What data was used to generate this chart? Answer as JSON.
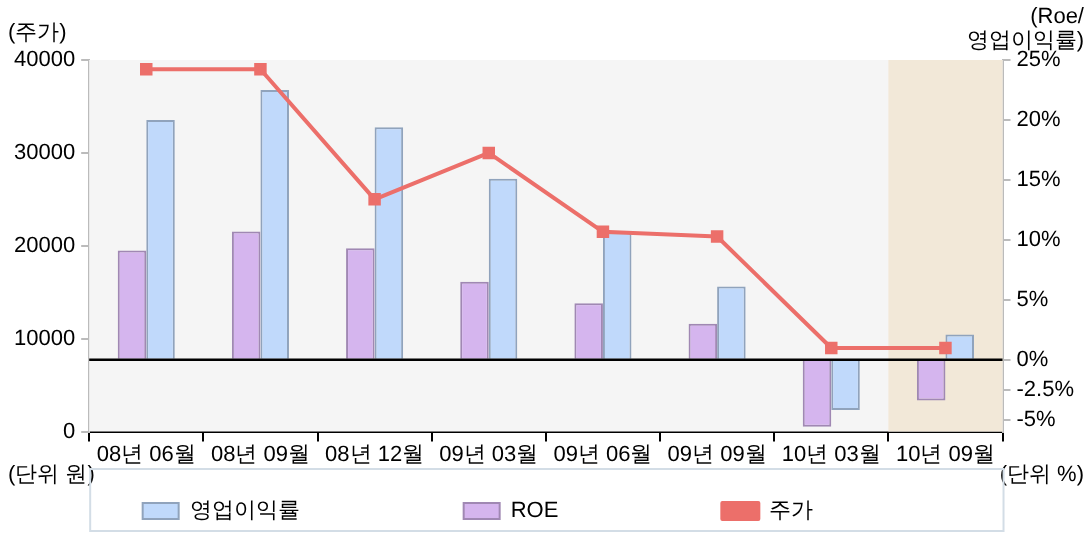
{
  "chart_data": {
    "type": "bar",
    "ylabel": "(주가)",
    "y2label": "(Roe/\n영업이익률)",
    "categories": [
      "08년 06월",
      "08년 09월",
      "08년 12월",
      "09년 03월",
      "09년 06월",
      "09년 09월",
      "10년 03월",
      "10년 09월"
    ],
    "series": [
      {
        "name": "영업이익률",
        "axis": "y2",
        "color": "#c0d9fb",
        "values": [
          20.0,
          22.5,
          19.4,
          15.1,
          10.6,
          6.1,
          -4.2,
          2.1
        ]
      },
      {
        "name": "ROE",
        "axis": "y2",
        "color": "#d5b5ee",
        "values": [
          9.1,
          10.7,
          9.3,
          6.5,
          4.7,
          3.0,
          -5.6,
          -3.4
        ]
      },
      {
        "name": "주가",
        "type": "line",
        "color": "#ec6f6a",
        "marker": "square",
        "values": [
          39000,
          39000,
          25000,
          30000,
          21500,
          21000,
          9000,
          9000
        ]
      }
    ],
    "ylim": [
      0,
      40000
    ],
    "yticks": [
      0,
      10000,
      20000,
      30000,
      40000
    ],
    "y2lim": [
      -6,
      25
    ],
    "y2ticks": [
      {
        "value": 25,
        "label": "25%"
      },
      {
        "value": 20,
        "label": "20%"
      },
      {
        "value": 15,
        "label": "15%"
      },
      {
        "value": 10,
        "label": "10%"
      },
      {
        "value": 5,
        "label": "5%"
      },
      {
        "value": 0,
        "label": "0%"
      },
      {
        "value": -2.5,
        "label": "-2.5%"
      },
      {
        "value": -5,
        "label": "-5%"
      }
    ],
    "ref_lines": [
      {
        "axis": "y2",
        "value": 0,
        "color": "#000000"
      }
    ],
    "bands": [
      {
        "axis": "x",
        "from": "10년 09월",
        "to": "10년 09월",
        "color": "#f2e8d8"
      }
    ],
    "annotations": [
      "(단위 원)",
      "(단위 %)"
    ],
    "grid": false,
    "legend": "bottom"
  }
}
